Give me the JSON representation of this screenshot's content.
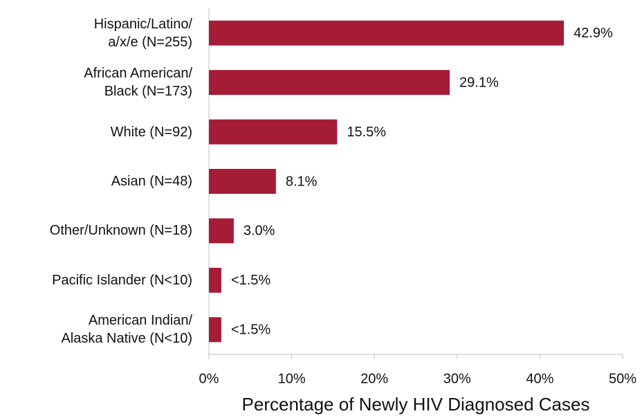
{
  "chart_data": {
    "type": "bar",
    "orientation": "horizontal",
    "x_label": "Percentage of Newly HIV Diagnosed Cases",
    "categories": [
      "Hispanic/Latino/\na/x/e (N=255)",
      "African American/\nBlack (N=173)",
      "White (N=92)",
      "Asian (N=48)",
      "Other/Unknown (N=18)",
      "Pacific Islander (N<10)",
      "American Indian/\nAlaska Native (N<10)"
    ],
    "values": [
      42.9,
      29.1,
      15.5,
      8.1,
      3.0,
      1.5,
      1.5
    ],
    "value_labels": [
      "42.9%",
      "29.1%",
      "15.5%",
      "8.1%",
      "3.0%",
      "<1.5%",
      "<1.5%"
    ],
    "color": "#a51c37",
    "xlim": [
      0,
      50
    ],
    "xticks": [
      {
        "value": 0,
        "label": "0%"
      },
      {
        "value": 10,
        "label": "10%"
      },
      {
        "value": 20,
        "label": "20%"
      },
      {
        "value": 30,
        "label": "30%"
      },
      {
        "value": 40,
        "label": "40%"
      },
      {
        "value": 50,
        "label": "50%"
      }
    ],
    "grid": false
  }
}
